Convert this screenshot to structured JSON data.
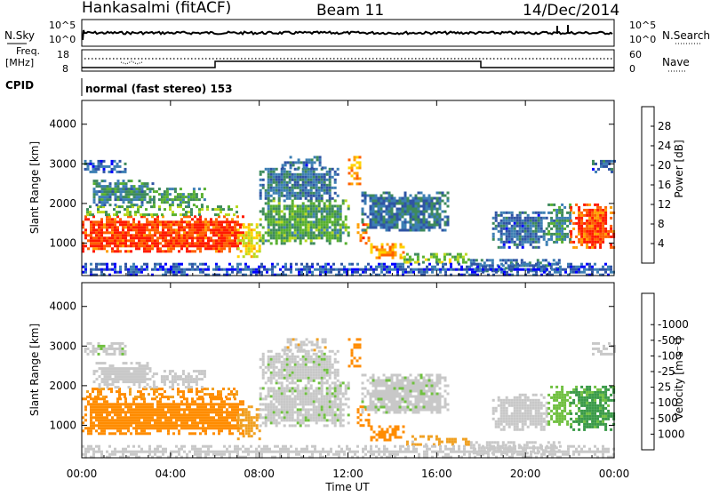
{
  "header": {
    "station": "Hankasalmi (fitACF)",
    "beam": "Beam 11",
    "date": "14/Dec/2014"
  },
  "panels": {
    "nsky": {
      "left_label": "N.Sky",
      "right_label": "N.Search",
      "left_ticks": [
        "10^5",
        "10^0"
      ],
      "right_ticks": [
        "10^5",
        "10^0"
      ]
    },
    "freq": {
      "left_label_1": "Freq.",
      "left_label_2": "[MHz]",
      "right_label": "Nave",
      "left_ticks": [
        "18",
        "8"
      ],
      "right_ticks": [
        "60",
        "0"
      ]
    },
    "cpid": {
      "label": "CPID",
      "text": "normal (fast stereo) 153"
    }
  },
  "colors": {
    "power": [
      "#0000ff",
      "#2f54a4",
      "#3d7fb4",
      "#3e8a5c",
      "#58b030",
      "#b8d81e",
      "#ffd400",
      "#ff9f00",
      "#ff6000",
      "#ff1a00"
    ],
    "velocity": [
      "#ff0000",
      "#ff4a00",
      "#ff8c00",
      "#f0a020",
      "#c8c8c8",
      "#c8c8c8",
      "#70c040",
      "#3a9a48",
      "#2a60a0",
      "#1020d0"
    ]
  },
  "chart_data": [
    {
      "type": "heatmap",
      "name": "power",
      "ylabel": "Slant Range [km]",
      "colorbar_label": "Power [dB]",
      "y_ticks": [
        1000,
        2000,
        3000,
        4000
      ],
      "ylim": [
        180,
        4600
      ],
      "colorbar_ticks": [
        4,
        8,
        12,
        16,
        20,
        24,
        28
      ],
      "colorbar_range": [
        0,
        32
      ]
    },
    {
      "type": "heatmap",
      "name": "velocity",
      "ylabel": "Slant Range [km]",
      "colorbar_label": "Velocity [m s⁻¹]",
      "y_ticks": [
        1000,
        2000,
        3000,
        4000
      ],
      "ylim": [
        180,
        4600
      ],
      "colorbar_ticks": [
        "-1000",
        "-500",
        "-100",
        "-25",
        "25",
        "100",
        "500",
        "1000"
      ]
    }
  ],
  "x_axis": {
    "label": "Time UT",
    "ticks": [
      "00:00",
      "04:00",
      "08:00",
      "12:00",
      "16:00",
      "20:00",
      "00:00"
    ],
    "xlim_hours": [
      0,
      24
    ]
  },
  "echo_regions": [
    {
      "h0": 0.0,
      "h1": 7.3,
      "r0": 800,
      "r1": 1700,
      "pw": 29,
      "vel": -250
    },
    {
      "h0": 0.2,
      "h1": 7.0,
      "r0": 1700,
      "r1": 1950,
      "pw": 14,
      "vel": -120
    },
    {
      "h0": 0.5,
      "h1": 3.2,
      "r0": 1950,
      "r1": 2600,
      "pw": 10,
      "vel": 0
    },
    {
      "h0": 3.2,
      "h1": 5.5,
      "r0": 1950,
      "r1": 2400,
      "pw": 12,
      "vel": 0
    },
    {
      "h0": 0.1,
      "h1": 2.0,
      "r0": 2800,
      "r1": 3100,
      "pw": 6,
      "vel": 10
    },
    {
      "h0": 7.0,
      "h1": 8.0,
      "r0": 650,
      "r1": 1500,
      "pw": 20,
      "vel": -60
    },
    {
      "h0": 8.0,
      "h1": 12.0,
      "r0": 1000,
      "r1": 2100,
      "pw": 13,
      "vel": 10
    },
    {
      "h0": 8.0,
      "h1": 11.5,
      "r0": 2100,
      "r1": 2900,
      "pw": 8,
      "vel": 10
    },
    {
      "h0": 9.0,
      "h1": 11.0,
      "r0": 2900,
      "r1": 3200,
      "pw": 7,
      "vel": -10
    },
    {
      "h0": 12.0,
      "h1": 12.6,
      "r0": 2500,
      "r1": 3200,
      "pw": 24,
      "vel": -300
    },
    {
      "h0": 12.4,
      "h1": 13.0,
      "r0": 1000,
      "r1": 1500,
      "pw": 26,
      "vel": -350
    },
    {
      "h0": 12.6,
      "h1": 16.5,
      "r0": 1300,
      "r1": 2300,
      "pw": 8,
      "vel": 10
    },
    {
      "h0": 13.0,
      "h1": 14.5,
      "r0": 600,
      "r1": 1000,
      "pw": 24,
      "vel": -200
    },
    {
      "h0": 14.5,
      "h1": 17.5,
      "r0": 500,
      "r1": 750,
      "pw": 16,
      "vel": -40
    },
    {
      "h0": 17.5,
      "h1": 21.5,
      "r0": 300,
      "r1": 600,
      "pw": 8,
      "vel": 0
    },
    {
      "h0": 18.5,
      "h1": 21.0,
      "r0": 900,
      "r1": 1800,
      "pw": 7,
      "vel": 0
    },
    {
      "h0": 21.0,
      "h1": 22.0,
      "r0": 1000,
      "r1": 2000,
      "pw": 10,
      "vel": 60
    },
    {
      "h0": 22.0,
      "h1": 24.0,
      "r0": 900,
      "r1": 2000,
      "pw": 28,
      "vel": 120
    },
    {
      "h0": 23.0,
      "h1": 24.0,
      "r0": 2800,
      "r1": 3100,
      "pw": 7,
      "vel": 0
    },
    {
      "h0": 0.0,
      "h1": 24.0,
      "r0": 200,
      "r1": 500,
      "pw": 5,
      "vel": 0
    }
  ]
}
